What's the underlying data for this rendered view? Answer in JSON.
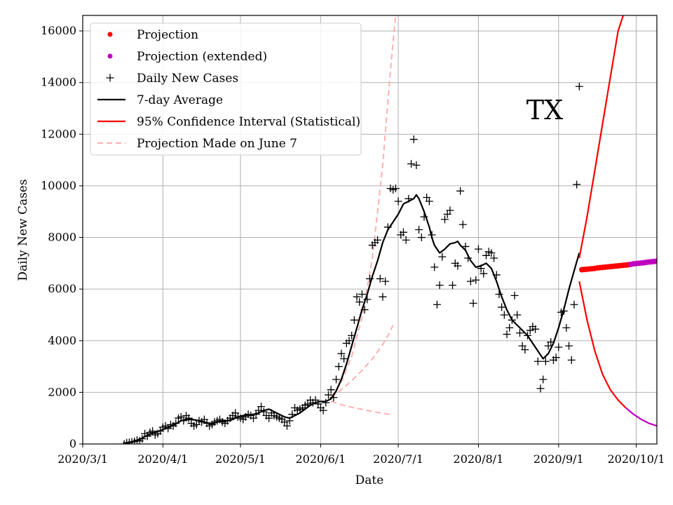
{
  "chart_data": {
    "type": "line",
    "title": "",
    "xlabel": "Date",
    "ylabel": "Daily New Cases",
    "annotation": "TX",
    "grid": true,
    "legend_position": "top-left",
    "xlim": [
      0,
      222
    ],
    "ylim": [
      0,
      16600
    ],
    "x_ticks": [
      {
        "day": 0,
        "label": "2020/3/1"
      },
      {
        "day": 31,
        "label": "2020/4/1"
      },
      {
        "day": 61,
        "label": "2020/5/1"
      },
      {
        "day": 92,
        "label": "2020/6/1"
      },
      {
        "day": 122,
        "label": "2020/7/1"
      },
      {
        "day": 153,
        "label": "2020/8/1"
      },
      {
        "day": 184,
        "label": "2020/9/1"
      },
      {
        "day": 214,
        "label": "2020/10/1"
      }
    ],
    "y_ticks": [
      0,
      2000,
      4000,
      6000,
      8000,
      10000,
      12000,
      14000,
      16000
    ],
    "colors": {
      "projection": "#ff0000",
      "extended": "#bf00bf",
      "daily": "#000000",
      "avg": "#000000",
      "ci": "#ff0000",
      "june": "#ffb0b0"
    },
    "legend": [
      {
        "label": "Projection",
        "kind": "dot",
        "color": "#ff0000"
      },
      {
        "label": "Projection (extended)",
        "kind": "dot",
        "color": "#bf00bf"
      },
      {
        "label": "Daily New Cases",
        "kind": "plus",
        "color": "#000000"
      },
      {
        "label": "7-day Average",
        "kind": "line",
        "color": "#000000"
      },
      {
        "label": "95% Confidence Interval (Statistical)",
        "kind": "line",
        "color": "#ff0000"
      },
      {
        "label": "Projection Made on June 7",
        "kind": "dashed",
        "color": "#ffb0b0"
      }
    ],
    "daily_new_cases": [
      [
        16,
        0
      ],
      [
        17,
        50
      ],
      [
        18,
        60
      ],
      [
        19,
        80
      ],
      [
        20,
        100
      ],
      [
        21,
        150
      ],
      [
        22,
        120
      ],
      [
        23,
        200
      ],
      [
        24,
        400
      ],
      [
        25,
        300
      ],
      [
        26,
        450
      ],
      [
        27,
        500
      ],
      [
        28,
        350
      ],
      [
        29,
        400
      ],
      [
        30,
        500
      ],
      [
        31,
        650
      ],
      [
        32,
        700
      ],
      [
        33,
        600
      ],
      [
        34,
        750
      ],
      [
        35,
        700
      ],
      [
        36,
        800
      ],
      [
        37,
        1000
      ],
      [
        38,
        1050
      ],
      [
        39,
        900
      ],
      [
        40,
        1100
      ],
      [
        41,
        1000
      ],
      [
        42,
        800
      ],
      [
        43,
        700
      ],
      [
        44,
        750
      ],
      [
        45,
        900
      ],
      [
        46,
        850
      ],
      [
        47,
        950
      ],
      [
        48,
        800
      ],
      [
        49,
        700
      ],
      [
        50,
        750
      ],
      [
        51,
        850
      ],
      [
        52,
        900
      ],
      [
        53,
        950
      ],
      [
        54,
        850
      ],
      [
        55,
        800
      ],
      [
        56,
        900
      ],
      [
        57,
        1000
      ],
      [
        58,
        1100
      ],
      [
        59,
        1200
      ],
      [
        60,
        1050
      ],
      [
        61,
        1000
      ],
      [
        62,
        950
      ],
      [
        63,
        1050
      ],
      [
        64,
        1150
      ],
      [
        65,
        1100
      ],
      [
        66,
        1000
      ],
      [
        67,
        1150
      ],
      [
        68,
        1300
      ],
      [
        69,
        1450
      ],
      [
        70,
        1250
      ],
      [
        71,
        1100
      ],
      [
        72,
        1000
      ],
      [
        73,
        1200
      ],
      [
        74,
        1100
      ],
      [
        75,
        1050
      ],
      [
        76,
        1000
      ],
      [
        77,
        950
      ],
      [
        78,
        850
      ],
      [
        79,
        700
      ],
      [
        80,
        900
      ],
      [
        81,
        1150
      ],
      [
        82,
        1400
      ],
      [
        83,
        1300
      ],
      [
        84,
        1350
      ],
      [
        85,
        1400
      ],
      [
        86,
        1500
      ],
      [
        87,
        1550
      ],
      [
        88,
        1700
      ],
      [
        89,
        1600
      ],
      [
        90,
        1700
      ],
      [
        91,
        1550
      ],
      [
        92,
        1400
      ],
      [
        93,
        1300
      ],
      [
        94,
        1600
      ],
      [
        95,
        1900
      ],
      [
        96,
        2100
      ],
      [
        97,
        1800
      ],
      [
        98,
        2500
      ],
      [
        99,
        3000
      ],
      [
        100,
        3500
      ],
      [
        101,
        3300
      ],
      [
        102,
        3900
      ],
      [
        103,
        4000
      ],
      [
        104,
        4200
      ],
      [
        105,
        4800
      ],
      [
        106,
        5700
      ],
      [
        107,
        5500
      ],
      [
        108,
        5800
      ],
      [
        109,
        5200
      ],
      [
        110,
        5600
      ],
      [
        111,
        6400
      ],
      [
        112,
        7700
      ],
      [
        113,
        7800
      ],
      [
        114,
        7900
      ],
      [
        115,
        6400
      ],
      [
        116,
        5700
      ],
      [
        117,
        6300
      ],
      [
        118,
        8400
      ],
      [
        119,
        9900
      ],
      [
        120,
        9850
      ],
      [
        121,
        9900
      ],
      [
        122,
        9400
      ],
      [
        123,
        8100
      ],
      [
        124,
        8200
      ],
      [
        125,
        7900
      ],
      [
        126,
        9500
      ],
      [
        127,
        10850
      ],
      [
        128,
        11800
      ],
      [
        129,
        10800
      ],
      [
        130,
        8300
      ],
      [
        131,
        8000
      ],
      [
        132,
        8800
      ],
      [
        133,
        9550
      ],
      [
        134,
        9400
      ],
      [
        135,
        8100
      ],
      [
        136,
        6850
      ],
      [
        137,
        5400
      ],
      [
        138,
        6150
      ],
      [
        139,
        7250
      ],
      [
        140,
        8700
      ],
      [
        141,
        8900
      ],
      [
        142,
        9050
      ],
      [
        143,
        6150
      ],
      [
        144,
        7000
      ],
      [
        145,
        6900
      ],
      [
        146,
        9800
      ],
      [
        147,
        8500
      ],
      [
        148,
        7650
      ],
      [
        149,
        7200
      ],
      [
        150,
        6300
      ],
      [
        151,
        5450
      ],
      [
        152,
        6350
      ],
      [
        153,
        7550
      ],
      [
        154,
        6800
      ],
      [
        155,
        6600
      ],
      [
        156,
        7300
      ],
      [
        157,
        7450
      ],
      [
        158,
        7400
      ],
      [
        159,
        7200
      ],
      [
        160,
        6550
      ],
      [
        161,
        5800
      ],
      [
        162,
        5300
      ],
      [
        163,
        5000
      ],
      [
        164,
        4250
      ],
      [
        165,
        4500
      ],
      [
        166,
        4800
      ],
      [
        167,
        5750
      ],
      [
        168,
        5000
      ],
      [
        169,
        4300
      ],
      [
        170,
        3800
      ],
      [
        171,
        3650
      ],
      [
        172,
        4200
      ],
      [
        173,
        4400
      ],
      [
        174,
        4550
      ],
      [
        175,
        4450
      ],
      [
        176,
        3200
      ],
      [
        177,
        2150
      ],
      [
        178,
        2500
      ],
      [
        179,
        3200
      ],
      [
        180,
        3800
      ],
      [
        181,
        3950
      ],
      [
        182,
        3250
      ],
      [
        183,
        3350
      ],
      [
        184,
        3750
      ],
      [
        185,
        5100
      ],
      [
        186,
        5150
      ],
      [
        187,
        4500
      ],
      [
        188,
        3800
      ],
      [
        189,
        3250
      ],
      [
        190,
        5400
      ],
      [
        191,
        10050
      ],
      [
        192,
        13850
      ]
    ],
    "seven_day_average": [
      [
        16,
        0
      ],
      [
        18,
        50
      ],
      [
        20,
        100
      ],
      [
        22,
        180
      ],
      [
        24,
        280
      ],
      [
        26,
        380
      ],
      [
        28,
        450
      ],
      [
        30,
        520
      ],
      [
        32,
        600
      ],
      [
        34,
        680
      ],
      [
        36,
        780
      ],
      [
        38,
        900
      ],
      [
        40,
        950
      ],
      [
        42,
        950
      ],
      [
        44,
        920
      ],
      [
        46,
        880
      ],
      [
        48,
        820
      ],
      [
        50,
        780
      ],
      [
        52,
        850
      ],
      [
        54,
        900
      ],
      [
        56,
        900
      ],
      [
        58,
        950
      ],
      [
        60,
        1050
      ],
      [
        62,
        1100
      ],
      [
        64,
        1120
      ],
      [
        66,
        1150
      ],
      [
        68,
        1200
      ],
      [
        70,
        1300
      ],
      [
        72,
        1350
      ],
      [
        74,
        1250
      ],
      [
        76,
        1150
      ],
      [
        78,
        1050
      ],
      [
        80,
        1000
      ],
      [
        82,
        1100
      ],
      [
        84,
        1200
      ],
      [
        86,
        1350
      ],
      [
        88,
        1500
      ],
      [
        90,
        1600
      ],
      [
        92,
        1650
      ],
      [
        94,
        1650
      ],
      [
        96,
        1750
      ],
      [
        98,
        2050
      ],
      [
        100,
        2500
      ],
      [
        102,
        3100
      ],
      [
        104,
        3800
      ],
      [
        106,
        4500
      ],
      [
        108,
        5200
      ],
      [
        110,
        5800
      ],
      [
        112,
        6500
      ],
      [
        114,
        7100
      ],
      [
        116,
        7800
      ],
      [
        118,
        8300
      ],
      [
        120,
        8600
      ],
      [
        122,
        8900
      ],
      [
        124,
        9300
      ],
      [
        126,
        9400
      ],
      [
        128,
        9500
      ],
      [
        129,
        9650
      ],
      [
        130,
        9500
      ],
      [
        132,
        9000
      ],
      [
        134,
        8400
      ],
      [
        135,
        8000
      ],
      [
        136,
        7700
      ],
      [
        138,
        7400
      ],
      [
        140,
        7550
      ],
      [
        142,
        7750
      ],
      [
        144,
        7800
      ],
      [
        145,
        7850
      ],
      [
        146,
        7700
      ],
      [
        148,
        7500
      ],
      [
        150,
        7100
      ],
      [
        152,
        6850
      ],
      [
        154,
        6900
      ],
      [
        156,
        7000
      ],
      [
        158,
        6800
      ],
      [
        160,
        6300
      ],
      [
        162,
        5700
      ],
      [
        164,
        5200
      ],
      [
        166,
        4800
      ],
      [
        168,
        4600
      ],
      [
        170,
        4400
      ],
      [
        172,
        4200
      ],
      [
        174,
        3900
      ],
      [
        176,
        3600
      ],
      [
        178,
        3300
      ],
      [
        180,
        3500
      ],
      [
        182,
        3900
      ],
      [
        184,
        4500
      ],
      [
        186,
        5200
      ],
      [
        188,
        6000
      ],
      [
        190,
        6700
      ],
      [
        192,
        7400
      ]
    ],
    "ci_upper": [
      [
        192,
        7200
      ],
      [
        195,
        8800
      ],
      [
        198,
        10600
      ],
      [
        201,
        12400
      ],
      [
        204,
        14200
      ],
      [
        207,
        16000
      ],
      [
        209,
        16600
      ]
    ],
    "ci_lower_red": [
      [
        192,
        6300
      ],
      [
        195,
        4800
      ],
      [
        198,
        3600
      ],
      [
        201,
        2700
      ],
      [
        204,
        2100
      ],
      [
        207,
        1700
      ],
      [
        210,
        1400
      ]
    ],
    "ci_lower_extended": [
      [
        210,
        1400
      ],
      [
        213,
        1150
      ],
      [
        216,
        950
      ],
      [
        219,
        800
      ],
      [
        222,
        700
      ]
    ],
    "projection": [
      [
        193,
        6750
      ],
      [
        194,
        6760
      ],
      [
        195,
        6770
      ],
      [
        196,
        6780
      ],
      [
        197,
        6790
      ],
      [
        198,
        6800
      ],
      [
        199,
        6820
      ],
      [
        200,
        6830
      ],
      [
        201,
        6840
      ],
      [
        202,
        6850
      ],
      [
        203,
        6860
      ],
      [
        204,
        6870
      ],
      [
        205,
        6880
      ],
      [
        206,
        6890
      ],
      [
        207,
        6900
      ],
      [
        208,
        6910
      ],
      [
        209,
        6920
      ],
      [
        210,
        6930
      ],
      [
        211,
        6940
      ]
    ],
    "projection_extended": [
      [
        212,
        6960
      ],
      [
        213,
        6980
      ],
      [
        214,
        6990
      ],
      [
        215,
        7000
      ],
      [
        216,
        7010
      ],
      [
        217,
        7020
      ],
      [
        218,
        7040
      ],
      [
        219,
        7050
      ],
      [
        220,
        7060
      ],
      [
        221,
        7070
      ],
      [
        222,
        7080
      ]
    ],
    "june7_upper": [
      [
        96,
        1800
      ],
      [
        100,
        2400
      ],
      [
        104,
        3400
      ],
      [
        108,
        4900
      ],
      [
        112,
        7200
      ],
      [
        116,
        10800
      ],
      [
        119,
        14500
      ],
      [
        121,
        16600
      ]
    ],
    "june7_middle": [
      [
        96,
        1800
      ],
      [
        100,
        2100
      ],
      [
        104,
        2450
      ],
      [
        108,
        2850
      ],
      [
        112,
        3300
      ],
      [
        116,
        3850
      ],
      [
        118,
        4200
      ],
      [
        120,
        4600
      ]
    ],
    "june7_lower": [
      [
        96,
        1650
      ],
      [
        100,
        1520
      ],
      [
        104,
        1420
      ],
      [
        108,
        1340
      ],
      [
        112,
        1260
      ],
      [
        116,
        1190
      ],
      [
        120,
        1130
      ]
    ]
  }
}
